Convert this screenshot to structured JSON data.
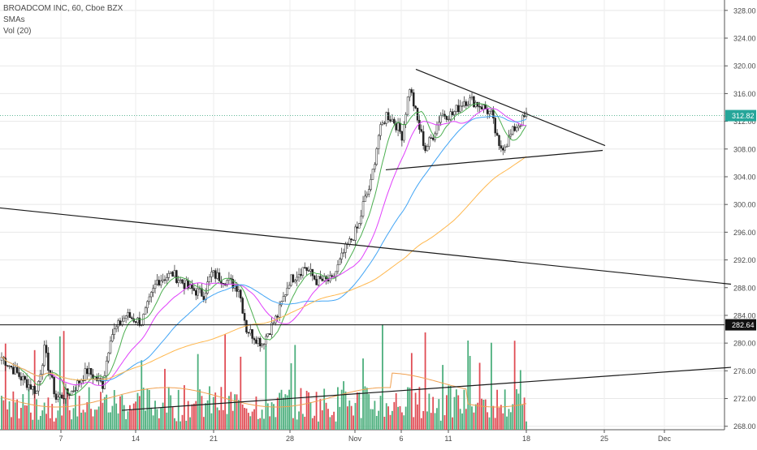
{
  "legend": {
    "symbol": "BROADCOM INC, 60, Cboe BZX",
    "smas": "SMAs",
    "vol": "Vol (20)"
  },
  "chart_data": {
    "type": "candlestick",
    "title": "BROADCOM INC, 60, Cboe BZX",
    "x_ticks": [
      "7",
      "14",
      "21",
      "28",
      "Nov",
      "6",
      "11",
      "18",
      "25",
      "Dec"
    ],
    "y_ticks": [
      "268.00",
      "272.00",
      "276.00",
      "280.00",
      "284.00",
      "288.00",
      "292.00",
      "296.00",
      "300.00",
      "304.00",
      "308.00",
      "312.00",
      "316.00",
      "320.00",
      "324.00",
      "328.00"
    ],
    "y_range": [
      267.5,
      329.5
    ],
    "last_price_label": "312.82",
    "level_label": "282.64",
    "last_price": 312.82,
    "level": 282.64,
    "grid": true,
    "price_axis": "right",
    "colors": {
      "up": "#26a69a",
      "down": "#ef5350",
      "vol_up": "#4caf7d",
      "vol_down": "#e04d55",
      "sma_fast": "#4caf50",
      "sma_mid": "#e040fb",
      "sma_slow": "#42a5f5",
      "sma_long": "#ffb74d",
      "vol_ma": "#f0a050",
      "trendline": "#1a1a1a"
    }
  }
}
